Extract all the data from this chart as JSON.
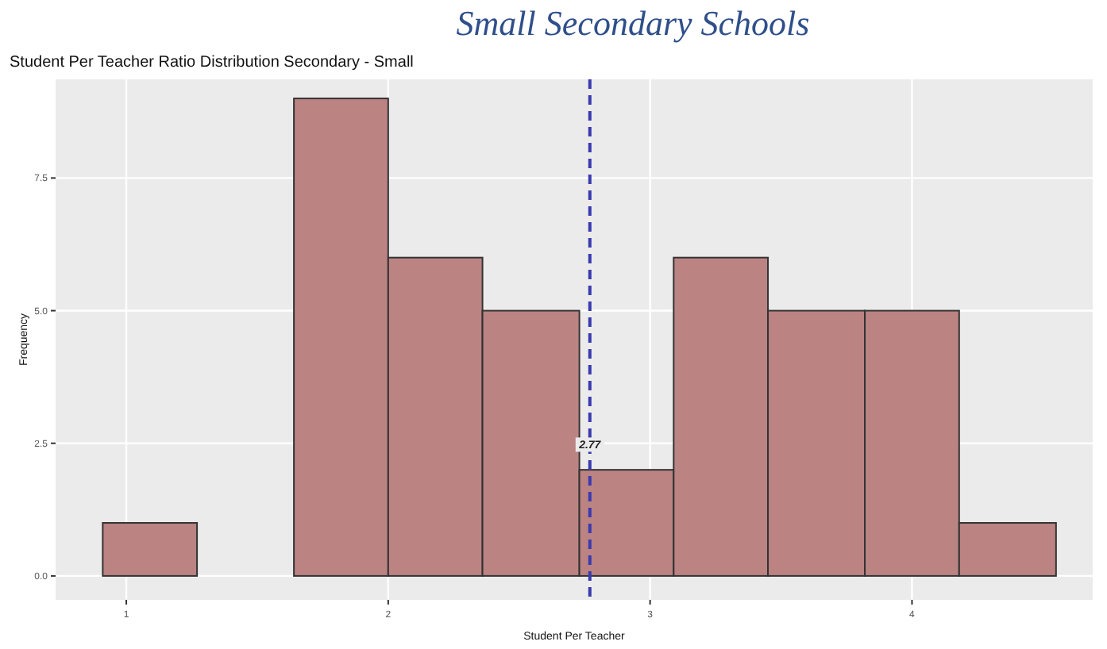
{
  "chart_data": {
    "type": "histogram",
    "title": "Student Per Teacher Ratio Distribution Secondary - Small",
    "annotations": [
      "Small Secondary Schools"
    ],
    "xlabel": "Student Per Teacher",
    "ylabel": "Frequency",
    "bins": [
      0.91,
      1.27,
      1.64,
      2.0,
      2.36,
      2.73,
      3.09,
      3.45,
      3.82,
      4.18,
      4.55
    ],
    "values": [
      1,
      0,
      9,
      6,
      5,
      2,
      6,
      5,
      5,
      1
    ],
    "color": "#bc8383",
    "xlim": [
      0.73,
      4.69
    ],
    "ylim": [
      -0.45,
      9.36
    ],
    "xticks": [
      1,
      2,
      3,
      4
    ],
    "yticks": [
      {
        "value": 0,
        "label": "0.0"
      },
      {
        "value": 2.5,
        "label": "2.5"
      },
      {
        "value": 5,
        "label": "5.0"
      },
      {
        "value": 7.5,
        "label": "7.5"
      }
    ],
    "grid": true,
    "ref_lines": [
      {
        "axis": "x",
        "value": 2.77,
        "label": "2.77",
        "color": "#3a3ab0",
        "line_style": "dashed"
      }
    ]
  }
}
